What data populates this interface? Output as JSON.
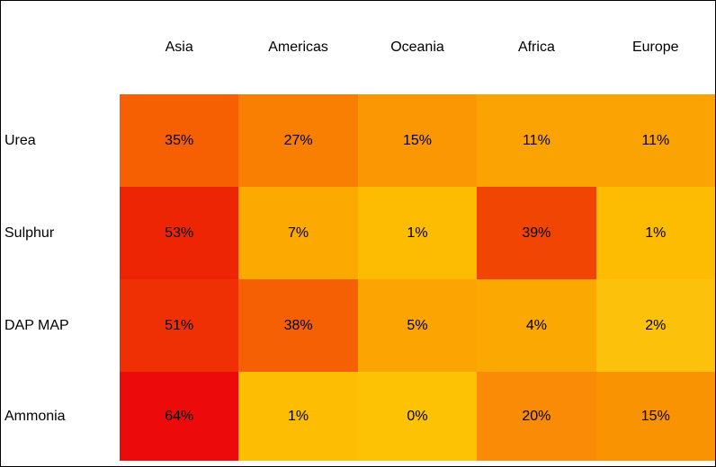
{
  "chart_data": {
    "type": "heatmap",
    "title": "",
    "columns": [
      "Asia",
      "Americas",
      "Oceania",
      "Africa",
      "Europe"
    ],
    "rows": [
      "Urea",
      "Sulphur",
      "DAP MAP",
      "Ammonia"
    ],
    "values": [
      [
        35,
        27,
        15,
        11,
        11
      ],
      [
        53,
        7,
        1,
        39,
        1
      ],
      [
        51,
        38,
        5,
        4,
        2
      ],
      [
        64,
        1,
        0,
        20,
        15
      ]
    ],
    "value_suffix": "%",
    "cell_colors": [
      [
        "#F65F02",
        "#F87F02",
        "#FA9702",
        "#FBA302",
        "#FBA302"
      ],
      [
        "#EE2505",
        "#FCAA02",
        "#FDBC02",
        "#F14504",
        "#FDBC02"
      ],
      [
        "#EF2F04",
        "#F56005",
        "#FBA402",
        "#FBA902",
        "#FCC10A"
      ],
      [
        "#EC0A0A",
        "#FDBD02",
        "#FDC203",
        "#F98B07",
        "#FA9302"
      ]
    ],
    "color_scale": {
      "low": "#FDC203",
      "high": "#EC0A0A"
    },
    "text_color": "#000000",
    "background_color": "#ffffff",
    "border_color": "#000000",
    "legend": "none",
    "grid_lines": "off"
  }
}
